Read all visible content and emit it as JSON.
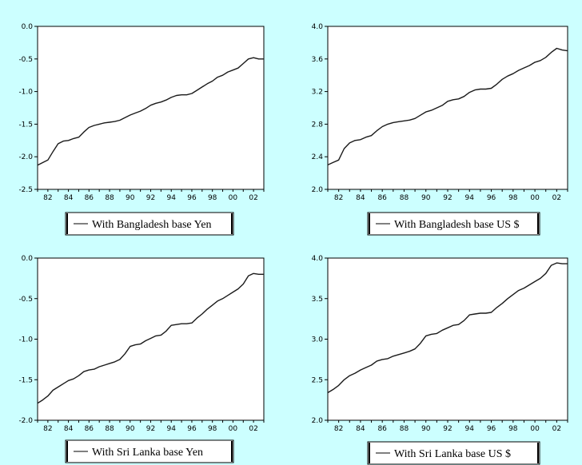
{
  "chart_data": [
    {
      "type": "line",
      "ylim": [
        -2.5,
        0.0
      ],
      "yticks": [
        "0.0",
        "-0.5",
        "-1.0",
        "-1.5",
        "-2.0",
        "-2.5"
      ],
      "ytick_values": [
        0.0,
        -0.5,
        -1.0,
        -1.5,
        -2.0,
        -2.5
      ],
      "xlim": [
        1981,
        2003
      ],
      "xticks": [
        "82",
        "84",
        "86",
        "88",
        "90",
        "92",
        "94",
        "96",
        "98",
        "00",
        "02"
      ],
      "xtick_values": [
        1982,
        1984,
        1986,
        1988,
        1990,
        1992,
        1994,
        1996,
        1998,
        2000,
        2002
      ],
      "legend": "With Bangladesh base Yen",
      "series": [
        {
          "x": [
            1981.0,
            1981.5,
            1982.0,
            1982.5,
            1983.0,
            1983.5,
            1984.0,
            1984.5,
            1985.0,
            1985.5,
            1986.0,
            1986.5,
            1987.0,
            1987.5,
            1988.0,
            1988.5,
            1989.0,
            1989.5,
            1990.0,
            1990.5,
            1991.0,
            1991.5,
            1992.0,
            1992.5,
            1993.0,
            1993.5,
            1994.0,
            1994.5,
            1995.0,
            1995.5,
            1996.0,
            1996.5,
            1997.0,
            1997.5,
            1998.0,
            1998.5,
            1999.0,
            1999.5,
            2000.0,
            2000.5,
            2001.0,
            2001.5,
            2002.0,
            2002.5,
            2003.0
          ],
          "y": [
            -2.13,
            -2.09,
            -2.05,
            -1.92,
            -1.8,
            -1.76,
            -1.75,
            -1.72,
            -1.7,
            -1.62,
            -1.55,
            -1.52,
            -1.5,
            -1.48,
            -1.47,
            -1.46,
            -1.44,
            -1.4,
            -1.36,
            -1.33,
            -1.3,
            -1.26,
            -1.21,
            -1.18,
            -1.16,
            -1.13,
            -1.09,
            -1.06,
            -1.05,
            -1.05,
            -1.03,
            -0.98,
            -0.93,
            -0.88,
            -0.84,
            -0.78,
            -0.75,
            -0.7,
            -0.67,
            -0.64,
            -0.57,
            -0.5,
            -0.48,
            -0.5,
            -0.5
          ]
        }
      ]
    },
    {
      "type": "line",
      "ylim": [
        2.0,
        4.0
      ],
      "yticks": [
        "4.0",
        "3.6",
        "3.2",
        "2.8",
        "2.4",
        "2.0"
      ],
      "ytick_values": [
        4.0,
        3.6,
        3.2,
        2.8,
        2.4,
        2.0
      ],
      "xlim": [
        1981,
        2003
      ],
      "xticks": [
        "82",
        "84",
        "86",
        "88",
        "90",
        "92",
        "94",
        "96",
        "98",
        "00",
        "02"
      ],
      "xtick_values": [
        1982,
        1984,
        1986,
        1988,
        1990,
        1992,
        1994,
        1996,
        1998,
        2000,
        2002
      ],
      "legend": "With Bangladesh base US $",
      "series": [
        {
          "x": [
            1981.0,
            1981.5,
            1982.0,
            1982.5,
            1983.0,
            1983.5,
            1984.0,
            1984.5,
            1985.0,
            1985.5,
            1986.0,
            1986.5,
            1987.0,
            1987.5,
            1988.0,
            1988.5,
            1989.0,
            1989.5,
            1990.0,
            1990.5,
            1991.0,
            1991.5,
            1992.0,
            1992.5,
            1993.0,
            1993.5,
            1994.0,
            1994.5,
            1995.0,
            1995.5,
            1996.0,
            1996.5,
            1997.0,
            1997.5,
            1998.0,
            1998.5,
            1999.0,
            1999.5,
            2000.0,
            2000.5,
            2001.0,
            2001.5,
            2002.0,
            2002.5,
            2003.0
          ],
          "y": [
            2.3,
            2.33,
            2.36,
            2.5,
            2.57,
            2.6,
            2.61,
            2.64,
            2.66,
            2.72,
            2.77,
            2.8,
            2.82,
            2.83,
            2.84,
            2.85,
            2.87,
            2.91,
            2.95,
            2.97,
            3.0,
            3.03,
            3.08,
            3.1,
            3.11,
            3.14,
            3.19,
            3.22,
            3.23,
            3.23,
            3.24,
            3.29,
            3.35,
            3.39,
            3.42,
            3.46,
            3.49,
            3.52,
            3.56,
            3.58,
            3.62,
            3.68,
            3.73,
            3.71,
            3.7
          ]
        }
      ]
    },
    {
      "type": "line",
      "ylim": [
        -2.0,
        0.0
      ],
      "yticks": [
        "0.0",
        "-0.5",
        "-1.0",
        "-1.5",
        "-2.0"
      ],
      "ytick_values": [
        0.0,
        -0.5,
        -1.0,
        -1.5,
        -2.0
      ],
      "xlim": [
        1981,
        2003
      ],
      "xticks": [
        "82",
        "84",
        "86",
        "88",
        "90",
        "92",
        "94",
        "96",
        "98",
        "00",
        "02"
      ],
      "xtick_values": [
        1982,
        1984,
        1986,
        1988,
        1990,
        1992,
        1994,
        1996,
        1998,
        2000,
        2002
      ],
      "legend": "With Sri Lanka base Yen",
      "series": [
        {
          "x": [
            1981.0,
            1981.5,
            1982.0,
            1982.5,
            1983.0,
            1983.5,
            1984.0,
            1984.5,
            1985.0,
            1985.5,
            1986.0,
            1986.5,
            1987.0,
            1987.5,
            1988.0,
            1988.5,
            1989.0,
            1989.5,
            1990.0,
            1990.5,
            1991.0,
            1991.5,
            1992.0,
            1992.5,
            1993.0,
            1993.5,
            1994.0,
            1994.5,
            1995.0,
            1995.5,
            1996.0,
            1996.5,
            1997.0,
            1997.5,
            1998.0,
            1998.5,
            1999.0,
            1999.5,
            2000.0,
            2000.5,
            2001.0,
            2001.5,
            2002.0,
            2002.5,
            2003.0
          ],
          "y": [
            -1.79,
            -1.75,
            -1.7,
            -1.63,
            -1.59,
            -1.55,
            -1.51,
            -1.49,
            -1.45,
            -1.4,
            -1.38,
            -1.37,
            -1.34,
            -1.32,
            -1.3,
            -1.28,
            -1.25,
            -1.18,
            -1.09,
            -1.07,
            -1.06,
            -1.02,
            -0.99,
            -0.96,
            -0.95,
            -0.9,
            -0.83,
            -0.82,
            -0.81,
            -0.81,
            -0.8,
            -0.74,
            -0.69,
            -0.63,
            -0.58,
            -0.53,
            -0.5,
            -0.46,
            -0.42,
            -0.38,
            -0.32,
            -0.22,
            -0.19,
            -0.2,
            -0.2
          ]
        }
      ]
    },
    {
      "type": "line",
      "ylim": [
        2.0,
        4.0
      ],
      "yticks": [
        "4.0",
        "3.5",
        "3.0",
        "2.5",
        "2.0"
      ],
      "ytick_values": [
        4.0,
        3.5,
        3.0,
        2.5,
        2.0
      ],
      "xlim": [
        1981,
        2003
      ],
      "xticks": [
        "82",
        "84",
        "86",
        "88",
        "90",
        "92",
        "94",
        "96",
        "98",
        "00",
        "02"
      ],
      "xtick_values": [
        1982,
        1984,
        1986,
        1988,
        1990,
        1992,
        1994,
        1996,
        1998,
        2000,
        2002
      ],
      "legend": "With Sri Lanka base US $",
      "series": [
        {
          "x": [
            1981.0,
            1981.5,
            1982.0,
            1982.5,
            1983.0,
            1983.5,
            1984.0,
            1984.5,
            1985.0,
            1985.5,
            1986.0,
            1986.5,
            1987.0,
            1987.5,
            1988.0,
            1988.5,
            1989.0,
            1989.5,
            1990.0,
            1990.5,
            1991.0,
            1991.5,
            1992.0,
            1992.5,
            1993.0,
            1993.5,
            1994.0,
            1994.5,
            1995.0,
            1995.5,
            1996.0,
            1996.5,
            1997.0,
            1997.5,
            1998.0,
            1998.5,
            1999.0,
            1999.5,
            2000.0,
            2000.5,
            2001.0,
            2001.5,
            2002.0,
            2002.5,
            2003.0
          ],
          "y": [
            2.34,
            2.38,
            2.43,
            2.5,
            2.55,
            2.58,
            2.62,
            2.65,
            2.68,
            2.73,
            2.75,
            2.76,
            2.79,
            2.81,
            2.83,
            2.85,
            2.88,
            2.95,
            3.04,
            3.06,
            3.07,
            3.11,
            3.14,
            3.17,
            3.18,
            3.23,
            3.3,
            3.31,
            3.32,
            3.32,
            3.33,
            3.39,
            3.44,
            3.5,
            3.55,
            3.6,
            3.63,
            3.67,
            3.71,
            3.75,
            3.81,
            3.91,
            3.94,
            3.93,
            3.93
          ]
        }
      ]
    }
  ],
  "colors": {
    "background": "#ccffff",
    "plot_area": "#ffffff",
    "line": "#1a1a1a"
  }
}
